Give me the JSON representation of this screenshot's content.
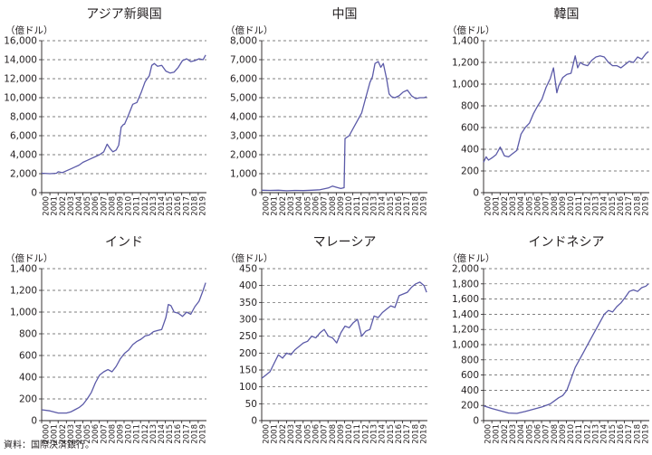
{
  "source": "資料：国際決済銀行。",
  "colors": {
    "line": "#5b5aa8",
    "axis": "#231f20",
    "grid": "#555555"
  },
  "chart_data": [
    {
      "type": "line",
      "title": "アジア新興国",
      "unit": "（億ドル）",
      "ylim": [
        0,
        16000
      ],
      "yticks": [
        "0",
        "2,000",
        "4,000",
        "6,000",
        "8,000",
        "10,000",
        "12,000",
        "14,000",
        "16,000"
      ],
      "xlim": [
        2000,
        2019.9
      ],
      "xticks": [
        "2000",
        "2001",
        "2002",
        "2003",
        "2004",
        "2005",
        "2006",
        "2007",
        "2008",
        "2009",
        "2010",
        "2011",
        "2012",
        "2013",
        "2014",
        "2015",
        "2016",
        "2017",
        "2018",
        "2019"
      ],
      "x": [
        2000,
        2001,
        2001.8,
        2002,
        2002.5,
        2003,
        2003.5,
        2004,
        2004.5,
        2005,
        2005.5,
        2006,
        2006.5,
        2007,
        2007.5,
        2007.9,
        2008.3,
        2008.6,
        2009,
        2009.3,
        2009.6,
        2009.9,
        2010,
        2010.5,
        2011,
        2011.5,
        2012,
        2012.5,
        2013,
        2013.3,
        2013.6,
        2014,
        2014.5,
        2015,
        2015.5,
        2016,
        2016.5,
        2017,
        2017.5,
        2018,
        2018.5,
        2019,
        2019.5,
        2019.8
      ],
      "y": [
        2050,
        2000,
        2050,
        2200,
        2100,
        2300,
        2500,
        2700,
        2900,
        3200,
        3400,
        3600,
        3800,
        4000,
        4300,
        5100,
        4600,
        4300,
        4500,
        5000,
        6900,
        7200,
        7200,
        8200,
        9300,
        9500,
        10500,
        11700,
        12300,
        13400,
        13600,
        13300,
        13400,
        12800,
        12600,
        12700,
        13200,
        13900,
        14100,
        13800,
        13900,
        14100,
        14000,
        14500
      ]
    },
    {
      "type": "line",
      "title": "中国",
      "unit": "（億ドル）",
      "ylim": [
        0,
        8000
      ],
      "yticks": [
        "0",
        "1,000",
        "2,000",
        "3,000",
        "4,000",
        "5,000",
        "6,000",
        "7,000",
        "8,000"
      ],
      "xlim": [
        2000,
        2019.9
      ],
      "xticks": [
        "2000",
        "2001",
        "2002",
        "2003",
        "2004",
        "2005",
        "2006",
        "2007",
        "2008",
        "2009",
        "2010",
        "2011",
        "2012",
        "2013",
        "2014",
        "2015",
        "2016",
        "2017",
        "2018",
        "2019"
      ],
      "x": [
        2000,
        2001,
        2002,
        2003,
        2004,
        2005,
        2006,
        2007,
        2007.5,
        2008,
        2008.5,
        2009,
        2009.5,
        2009.9,
        2010,
        2010.5,
        2011,
        2011.5,
        2012,
        2012.5,
        2013,
        2013.3,
        2013.6,
        2014,
        2014.3,
        2014.6,
        2015,
        2015.3,
        2015.6,
        2016,
        2016.5,
        2017,
        2017.5,
        2018,
        2018.5,
        2019,
        2019.5,
        2019.8
      ],
      "y": [
        130,
        120,
        130,
        100,
        120,
        110,
        130,
        150,
        200,
        250,
        350,
        280,
        220,
        260,
        2850,
        3000,
        3400,
        3800,
        4200,
        5000,
        5800,
        6100,
        6800,
        6900,
        6600,
        6800,
        6000,
        5200,
        5050,
        5000,
        5100,
        5300,
        5400,
        5100,
        4950,
        5000,
        5000,
        5050
      ]
    },
    {
      "type": "line",
      "title": "韓国",
      "unit": "（億ドル）",
      "ylim": [
        0,
        1400
      ],
      "yticks": [
        "0",
        "200",
        "400",
        "600",
        "800",
        "1,000",
        "1,200",
        "1,400"
      ],
      "xlim": [
        2000,
        2019.9
      ],
      "xticks": [
        "2000",
        "2001",
        "2002",
        "2003",
        "2004",
        "2005",
        "2006",
        "2007",
        "2008",
        "2009",
        "2010",
        "2011",
        "2012",
        "2013",
        "2014",
        "2015",
        "2016",
        "2017",
        "2018",
        "2019"
      ],
      "x": [
        2000,
        2000.3,
        2000.6,
        2001,
        2001.5,
        2002,
        2002.5,
        2003,
        2003.5,
        2004,
        2004.5,
        2005,
        2005.5,
        2006,
        2006.5,
        2007,
        2007.5,
        2008,
        2008.4,
        2008.8,
        2009,
        2009.5,
        2010,
        2010.5,
        2011,
        2011.3,
        2011.6,
        2012,
        2012.5,
        2013,
        2013.5,
        2014,
        2014.5,
        2015,
        2015.5,
        2016,
        2016.5,
        2017,
        2017.5,
        2018,
        2018.5,
        2019,
        2019.5,
        2019.8
      ],
      "y": [
        280,
        330,
        300,
        320,
        350,
        420,
        340,
        330,
        360,
        390,
        540,
        600,
        640,
        730,
        800,
        860,
        970,
        1050,
        1150,
        920,
        980,
        1060,
        1090,
        1100,
        1260,
        1150,
        1200,
        1180,
        1170,
        1220,
        1250,
        1260,
        1250,
        1200,
        1170,
        1170,
        1150,
        1180,
        1210,
        1200,
        1250,
        1230,
        1280,
        1300
      ]
    },
    {
      "type": "line",
      "title": "インド",
      "unit": "（億ドル）",
      "ylim": [
        0,
        1400
      ],
      "yticks": [
        "0",
        "200",
        "400",
        "600",
        "800",
        "1,000",
        "1,200",
        "1,400"
      ],
      "xlim": [
        2000,
        2019.9
      ],
      "xticks": [
        "2000",
        "2001",
        "2002",
        "2003",
        "2004",
        "2005",
        "2006",
        "2007",
        "2008",
        "2009",
        "2010",
        "2011",
        "2012",
        "2013",
        "2014",
        "2015",
        "2016",
        "2017",
        "2018",
        "2019"
      ],
      "x": [
        2000,
        2001,
        2002,
        2003,
        2003.5,
        2004,
        2004.5,
        2005,
        2005.5,
        2006,
        2006.5,
        2007,
        2007.5,
        2008,
        2008.5,
        2009,
        2009.5,
        2010,
        2010.5,
        2011,
        2011.5,
        2012,
        2012.5,
        2013,
        2013.5,
        2014,
        2014.5,
        2015,
        2015.3,
        2015.6,
        2016,
        2016.5,
        2017,
        2017.5,
        2018,
        2018.5,
        2019,
        2019.5,
        2019.8
      ],
      "y": [
        100,
        90,
        70,
        70,
        80,
        100,
        120,
        150,
        200,
        260,
        350,
        420,
        450,
        470,
        450,
        500,
        570,
        620,
        650,
        700,
        730,
        750,
        780,
        790,
        820,
        830,
        840,
        950,
        1070,
        1060,
        1000,
        990,
        960,
        1000,
        980,
        1050,
        1100,
        1200,
        1270
      ]
    },
    {
      "type": "line",
      "title": "マレーシア",
      "unit": "（億ドル）",
      "ylim": [
        0,
        450
      ],
      "yticks": [
        "0",
        "50",
        "100",
        "150",
        "200",
        "250",
        "300",
        "350",
        "400",
        "450"
      ],
      "xlim": [
        2000,
        2019.9
      ],
      "xticks": [
        "2000",
        "2001",
        "2002",
        "2003",
        "2004",
        "2005",
        "2006",
        "2007",
        "2008",
        "2009",
        "2010",
        "2011",
        "2012",
        "2013",
        "2014",
        "2015",
        "2016",
        "2017",
        "2018",
        "2019"
      ],
      "x": [
        2000,
        2000.5,
        2001,
        2001.5,
        2002,
        2002.5,
        2003,
        2003.5,
        2004,
        2004.5,
        2005,
        2005.5,
        2006,
        2006.5,
        2007,
        2007.5,
        2008,
        2008.5,
        2009,
        2009.5,
        2010,
        2010.5,
        2011,
        2011.5,
        2012,
        2012.5,
        2013,
        2013.5,
        2014,
        2014.5,
        2015,
        2015.5,
        2016,
        2016.5,
        2017,
        2017.5,
        2018,
        2018.5,
        2019,
        2019.5,
        2019.8
      ],
      "y": [
        125,
        135,
        145,
        170,
        195,
        185,
        200,
        195,
        210,
        220,
        230,
        235,
        250,
        245,
        260,
        270,
        250,
        245,
        230,
        260,
        280,
        275,
        290,
        300,
        250,
        265,
        270,
        310,
        305,
        320,
        330,
        340,
        335,
        370,
        375,
        380,
        395,
        405,
        410,
        400,
        380
      ]
    },
    {
      "type": "line",
      "title": "インドネシア",
      "unit": "（億ドル）",
      "ylim": [
        0,
        2000
      ],
      "yticks": [
        "0",
        "200",
        "400",
        "600",
        "800",
        "1,000",
        "1,200",
        "1,400",
        "1,600",
        "1,800",
        "2,000"
      ],
      "xlim": [
        2000,
        2019.9
      ],
      "xticks": [
        "2000",
        "2001",
        "2002",
        "2003",
        "2004",
        "2005",
        "2006",
        "2007",
        "2008",
        "2009",
        "2010",
        "2011",
        "2012",
        "2013",
        "2014",
        "2015",
        "2016",
        "2017",
        "2018",
        "2019"
      ],
      "x": [
        2000,
        2001,
        2002,
        2003,
        2004,
        2005,
        2006,
        2007,
        2008,
        2008.5,
        2009,
        2009.5,
        2010,
        2010.5,
        2011,
        2011.5,
        2012,
        2012.5,
        2013,
        2013.5,
        2014,
        2014.5,
        2015,
        2015.5,
        2016,
        2016.5,
        2017,
        2017.5,
        2018,
        2018.5,
        2019,
        2019.5,
        2019.8
      ],
      "y": [
        195,
        160,
        130,
        100,
        95,
        120,
        150,
        180,
        220,
        260,
        300,
        330,
        400,
        550,
        700,
        800,
        900,
        1000,
        1100,
        1200,
        1300,
        1400,
        1450,
        1430,
        1500,
        1550,
        1620,
        1700,
        1720,
        1700,
        1750,
        1770,
        1800
      ]
    }
  ]
}
